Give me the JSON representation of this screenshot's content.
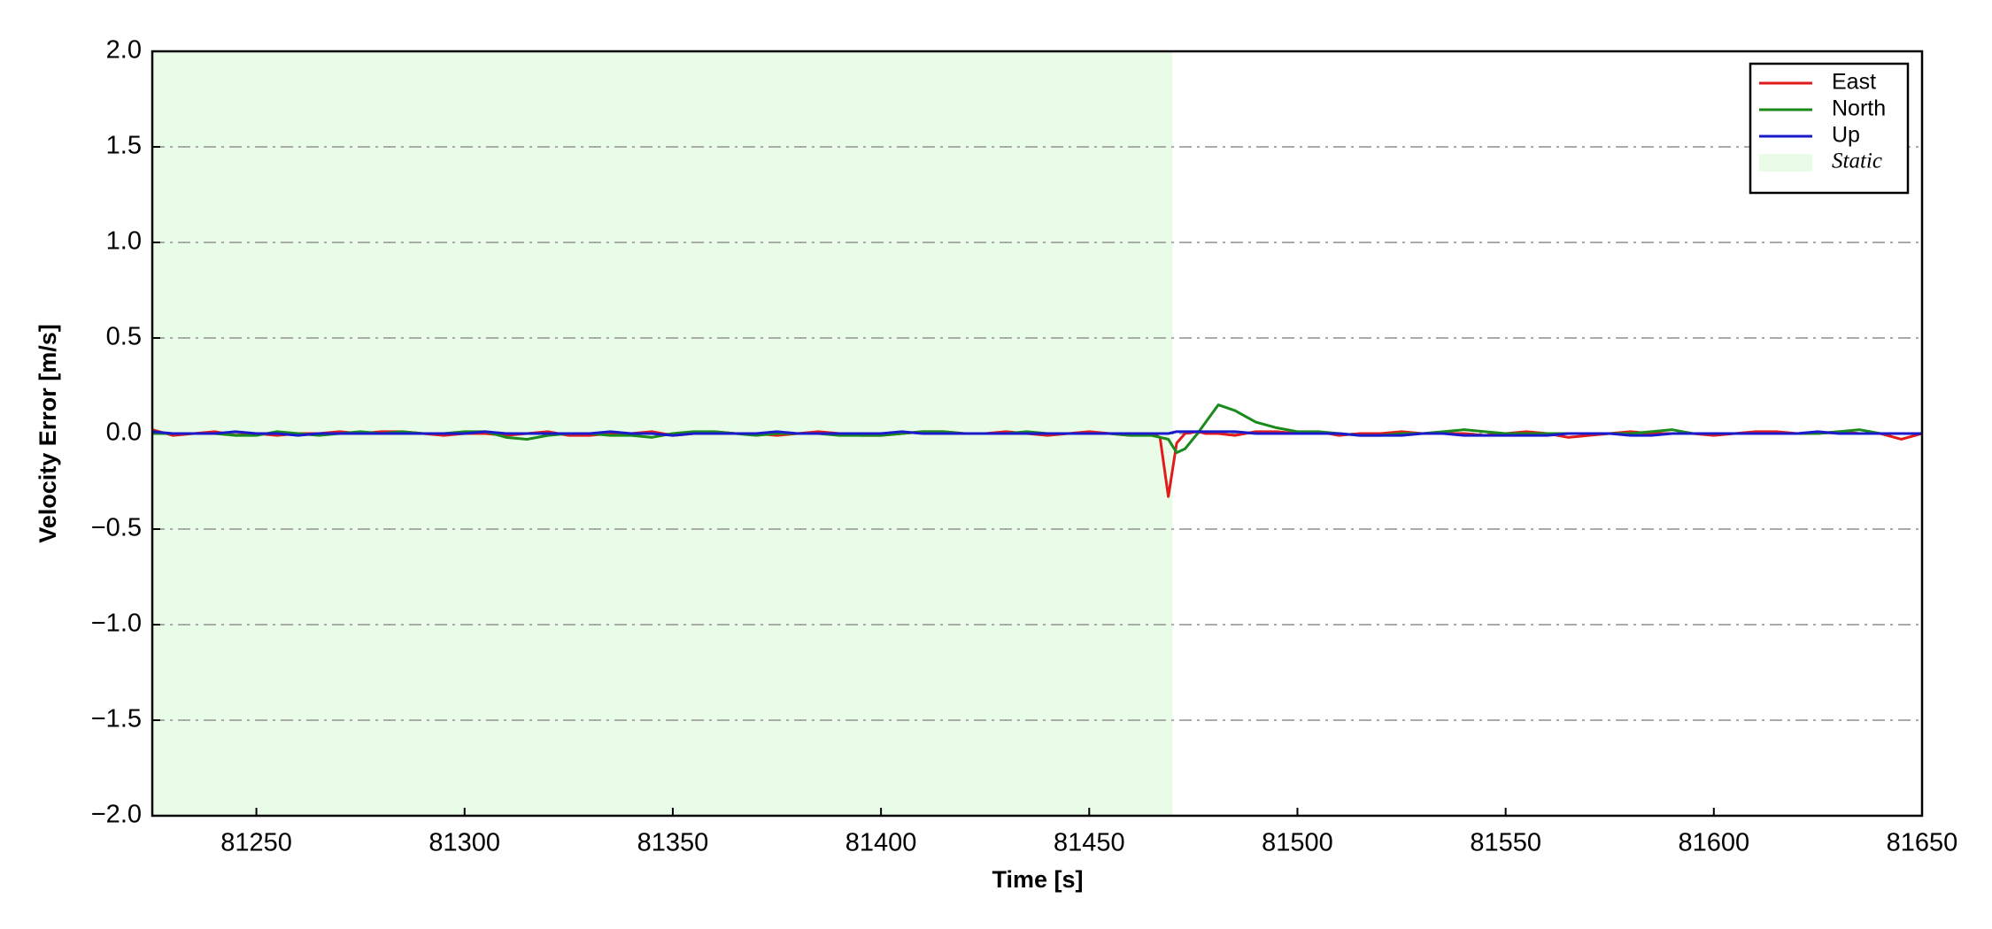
{
  "chart_data": {
    "type": "line",
    "xlabel": "Time [s]",
    "ylabel": "Velocity Error [m/s]",
    "x": [
      81225,
      81230,
      81235,
      81240,
      81245,
      81250,
      81255,
      81260,
      81265,
      81270,
      81275,
      81280,
      81285,
      81290,
      81295,
      81300,
      81305,
      81310,
      81315,
      81320,
      81325,
      81330,
      81335,
      81340,
      81345,
      81350,
      81355,
      81360,
      81365,
      81370,
      81375,
      81380,
      81385,
      81390,
      81395,
      81400,
      81405,
      81410,
      81415,
      81420,
      81425,
      81430,
      81435,
      81440,
      81445,
      81450,
      81455,
      81460,
      81465,
      81467,
      81469,
      81471,
      81473,
      81476,
      81478,
      81481,
      81485,
      81490,
      81495,
      81500,
      81505,
      81510,
      81515,
      81520,
      81525,
      81530,
      81535,
      81540,
      81545,
      81550,
      81555,
      81560,
      81565,
      81570,
      81575,
      81580,
      81585,
      81590,
      81595,
      81600,
      81605,
      81610,
      81615,
      81620,
      81625,
      81630,
      81635,
      81640,
      81645,
      81650
    ],
    "series": [
      {
        "name": "East",
        "color": "#e31a1c",
        "values": [
          0.02,
          -0.01,
          0.0,
          0.01,
          -0.01,
          0.0,
          -0.01,
          0.0,
          0.0,
          0.01,
          0.0,
          0.01,
          0.01,
          0.0,
          -0.01,
          0.0,
          0.0,
          -0.01,
          0.0,
          0.01,
          -0.01,
          -0.01,
          0.0,
          0.0,
          0.01,
          -0.01,
          0.0,
          0.01,
          0.0,
          0.0,
          -0.01,
          0.0,
          0.01,
          0.0,
          -0.01,
          -0.01,
          0.0,
          0.01,
          0.01,
          0.0,
          0.0,
          0.01,
          0.0,
          -0.01,
          0.0,
          0.01,
          0.0,
          -0.01,
          0.0,
          -0.02,
          -0.33,
          -0.05,
          0.0,
          0.01,
          0.0,
          0.0,
          -0.01,
          0.01,
          0.01,
          0.0,
          0.01,
          -0.01,
          0.0,
          0.0,
          0.01,
          0.0,
          0.0,
          0.0,
          -0.01,
          0.0,
          0.01,
          0.0,
          -0.02,
          -0.01,
          0.0,
          0.01,
          0.0,
          0.0,
          0.0,
          -0.01,
          0.0,
          0.01,
          0.01,
          0.0,
          0.0,
          0.01,
          0.0,
          0.0,
          -0.03,
          0.0
        ]
      },
      {
        "name": "North",
        "color": "#1a8a1a",
        "values": [
          0.0,
          0.0,
          0.0,
          0.0,
          -0.01,
          -0.01,
          0.01,
          0.0,
          -0.01,
          0.0,
          0.01,
          0.0,
          0.01,
          0.0,
          0.0,
          0.01,
          0.01,
          -0.02,
          -0.03,
          -0.01,
          0.0,
          0.0,
          -0.01,
          -0.01,
          -0.02,
          0.0,
          0.01,
          0.01,
          0.0,
          -0.01,
          0.0,
          0.0,
          0.0,
          -0.01,
          -0.01,
          -0.01,
          0.0,
          0.01,
          0.01,
          0.0,
          0.0,
          0.0,
          0.01,
          0.0,
          0.0,
          0.0,
          0.0,
          -0.01,
          -0.01,
          -0.02,
          -0.03,
          -0.1,
          -0.08,
          0.0,
          0.06,
          0.15,
          0.12,
          0.06,
          0.03,
          0.01,
          0.01,
          0.0,
          -0.01,
          -0.01,
          0.0,
          0.0,
          0.01,
          0.02,
          0.01,
          0.0,
          0.0,
          0.0,
          0.0,
          0.0,
          0.0,
          0.0,
          0.01,
          0.02,
          0.0,
          0.0,
          0.0,
          0.0,
          0.0,
          0.0,
          0.0,
          0.01,
          0.02,
          0.0,
          0.0,
          0.0
        ]
      },
      {
        "name": "Up",
        "color": "#1a1acc",
        "values": [
          0.01,
          0.0,
          0.0,
          0.0,
          0.01,
          0.0,
          0.0,
          -0.01,
          0.0,
          0.0,
          0.0,
          0.0,
          0.0,
          0.0,
          0.0,
          0.0,
          0.01,
          0.0,
          0.0,
          0.0,
          0.0,
          0.0,
          0.01,
          0.0,
          0.0,
          -0.01,
          0.0,
          0.0,
          0.0,
          0.0,
          0.01,
          0.0,
          0.0,
          0.0,
          0.0,
          0.0,
          0.01,
          0.0,
          0.0,
          0.0,
          0.0,
          0.0,
          0.0,
          0.0,
          0.0,
          0.0,
          0.0,
          0.0,
          0.0,
          0.0,
          0.0,
          0.01,
          0.01,
          0.01,
          0.01,
          0.01,
          0.01,
          0.0,
          0.0,
          0.0,
          0.0,
          0.0,
          -0.01,
          -0.01,
          -0.01,
          0.0,
          0.0,
          -0.01,
          -0.01,
          -0.01,
          -0.01,
          -0.01,
          0.0,
          0.0,
          0.0,
          -0.01,
          -0.01,
          0.0,
          0.0,
          0.0,
          0.0,
          0.0,
          0.0,
          0.0,
          0.01,
          0.0,
          0.0,
          0.0,
          0.0,
          0.0
        ]
      }
    ],
    "shaded_regions": [
      {
        "label": "Static",
        "xmin": 81225,
        "xmax": 81470,
        "color": "#e8fce8"
      }
    ],
    "xlim": [
      81225,
      81650
    ],
    "xticks": [
      81250,
      81300,
      81350,
      81400,
      81450,
      81500,
      81550,
      81600,
      81650
    ],
    "ylim": [
      -2,
      2
    ],
    "yticks": [
      {
        "value": -2,
        "label": "−2.0"
      },
      {
        "value": -1.5,
        "label": "−1.5"
      },
      {
        "value": -1,
        "label": "−1.0"
      },
      {
        "value": -0.5,
        "label": "−0.5"
      },
      {
        "value": 0,
        "label": "0.0"
      },
      {
        "value": 0.5,
        "label": "0.5"
      },
      {
        "value": 1,
        "label": "1.0"
      },
      {
        "value": 1.5,
        "label": "1.5"
      },
      {
        "value": 2,
        "label": "2.0"
      }
    ],
    "grid": true,
    "legend": "upper right"
  }
}
